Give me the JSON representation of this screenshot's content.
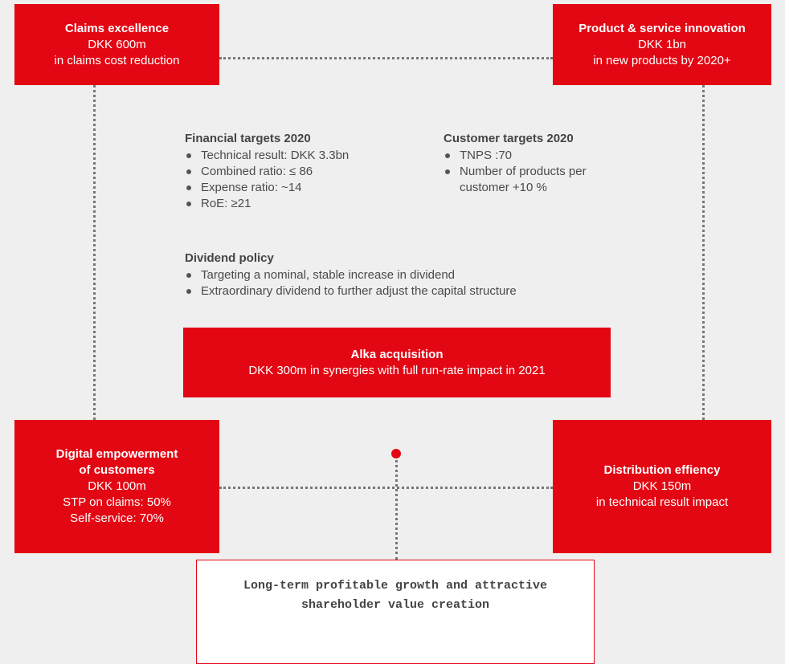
{
  "boxes": [
    {
      "title": [
        "Claims excellence"
      ],
      "lines": [
        "DKK 600m",
        "in claims cost reduction"
      ]
    },
    {
      "title": [
        "Product & service innovation"
      ],
      "lines": [
        "DKK 1bn",
        "in new products by 2020+"
      ]
    },
    {
      "title": [
        "Digital empowerment",
        "of customers"
      ],
      "lines": [
        "DKK 100m",
        "STP on claims: 50%",
        "Self-service: 70%"
      ]
    },
    {
      "title": [
        "Distribution effiency"
      ],
      "lines": [
        "DKK 150m",
        "in technical result impact"
      ]
    }
  ],
  "financial_targets": {
    "heading": "Financial targets 2020",
    "items": [
      "Technical result: DKK 3.3bn",
      "Combined ratio: ≤ 86",
      "Expense ratio: ~14",
      "RoE: ≥21"
    ]
  },
  "customer_targets": {
    "heading": "Customer targets 2020",
    "items": [
      "TNPS :70",
      "Number of products per customer +10 %"
    ]
  },
  "dividend_policy": {
    "heading": "Dividend policy",
    "items": [
      "Targeting a nominal, stable increase in dividend",
      "Extraordinary dividend to further adjust the capital structure"
    ]
  },
  "acquisition": {
    "title": "Alka acquisition",
    "text": "DKK 300m in synergies with full run-rate impact in 2021"
  },
  "goal": {
    "lines": [
      "Long-term profitable growth and attractive",
      "shareholder value creation"
    ]
  }
}
